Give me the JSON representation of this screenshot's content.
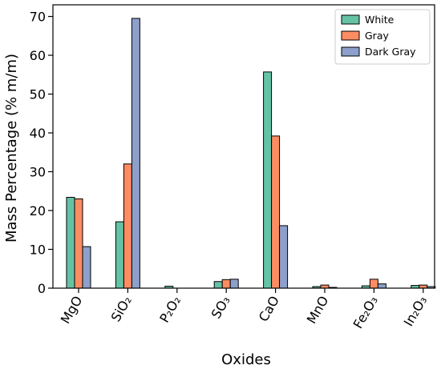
{
  "chart_data": {
    "type": "bar",
    "categories": [
      "MgO",
      "SiO₂",
      "P₂O₂",
      "SO₃",
      "CaO",
      "MnO",
      "Fe₂O₃",
      "In₂O₃"
    ],
    "series": [
      {
        "name": "White",
        "color": "#66c2a5",
        "values": [
          23.4,
          17.1,
          0.5,
          1.7,
          55.7,
          0.4,
          0.6,
          0.7
        ]
      },
      {
        "name": "Gray",
        "color": "#fc8d62",
        "values": [
          23.0,
          32.0,
          0.0,
          2.2,
          39.2,
          0.8,
          2.3,
          0.8
        ]
      },
      {
        "name": "Dark Gray",
        "color": "#8da0cb",
        "values": [
          10.7,
          69.5,
          0.0,
          2.3,
          16.1,
          0.2,
          1.1,
          0.4
        ]
      }
    ],
    "xlabel": "Oxides",
    "ylabel": "Mass Percentage (% m/m)",
    "ylim": [
      0,
      73
    ],
    "yticks": [
      0,
      10,
      20,
      30,
      40,
      50,
      60,
      70
    ],
    "grid": false,
    "legend_position": "top-right"
  }
}
